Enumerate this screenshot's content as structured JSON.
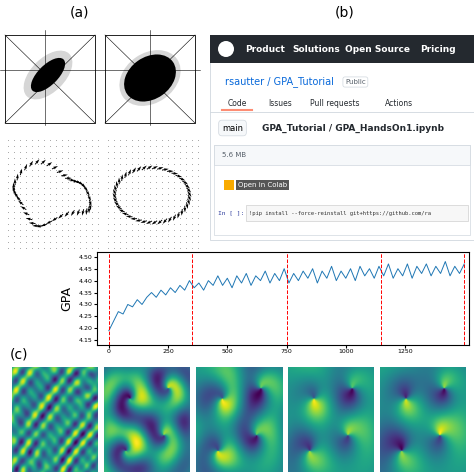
{
  "panel_labels": [
    "(a)",
    "(b)",
    "(c)"
  ],
  "screenshot": {
    "nav": [
      "Product",
      "Solutions",
      "Open Source",
      "Pricing"
    ],
    "repo_title": "rsautter / GPA_Tutorial",
    "visibility": "Public",
    "tabs": [
      "Code",
      "Issues",
      "Pull requests",
      "Actions"
    ],
    "branch": "main",
    "path": "GPA_Tutorial / GPA_HandsOn1.ipynb",
    "size": "5.6 MB",
    "badge": "Open in Colab",
    "cell_prompt": "In [ ]:",
    "cell_code": "!pip install --force-reinstall git+https://github.com/ra"
  },
  "chart_data": {
    "type": "line",
    "ylabel": "GPA",
    "color": "#1f77b4",
    "x": [
      0,
      20,
      40,
      60,
      80,
      100,
      120,
      140,
      160,
      180,
      200,
      220,
      240,
      260,
      280,
      300,
      320,
      340,
      360,
      380,
      400,
      420,
      440,
      460,
      480,
      500,
      520,
      540,
      560,
      580,
      600,
      620,
      640,
      660,
      680,
      700,
      720,
      740,
      760,
      780,
      800,
      820,
      840,
      860,
      880,
      900,
      920,
      940,
      960,
      980,
      1000,
      1020,
      1040,
      1060,
      1080,
      1100,
      1120,
      1140,
      1160,
      1180,
      1200,
      1220,
      1240,
      1260,
      1280,
      1300,
      1320,
      1340,
      1360,
      1380,
      1400,
      1420,
      1440,
      1460,
      1480,
      1500
    ],
    "values": [
      4.19,
      4.23,
      4.27,
      4.26,
      4.3,
      4.29,
      4.32,
      4.3,
      4.33,
      4.35,
      4.33,
      4.36,
      4.34,
      4.37,
      4.35,
      4.38,
      4.36,
      4.4,
      4.37,
      4.39,
      4.36,
      4.4,
      4.38,
      4.42,
      4.38,
      4.41,
      4.37,
      4.42,
      4.39,
      4.43,
      4.38,
      4.42,
      4.4,
      4.44,
      4.39,
      4.43,
      4.4,
      4.45,
      4.39,
      4.43,
      4.4,
      4.44,
      4.41,
      4.45,
      4.39,
      4.44,
      4.41,
      4.46,
      4.4,
      4.44,
      4.41,
      4.45,
      4.4,
      4.46,
      4.42,
      4.45,
      4.41,
      4.46,
      4.42,
      4.47,
      4.41,
      4.45,
      4.42,
      4.47,
      4.41,
      4.46,
      4.43,
      4.47,
      4.42,
      4.46,
      4.43,
      4.48,
      4.42,
      4.46,
      4.43,
      4.47
    ],
    "xlim": [
      -50,
      1520
    ],
    "xticks": [
      0,
      250,
      500,
      750,
      1000,
      1250
    ],
    "ylim": [
      4.13,
      4.52
    ],
    "yticks": [
      4.15,
      {
        "value": 4.2,
        "label": "4.20"
      },
      4.25,
      {
        "value": 4.3,
        "label": "4.30"
      },
      4.35,
      {
        "value": 4.4,
        "label": "4.40"
      },
      4.45,
      {
        "value": 4.5,
        "label": "4.50"
      }
    ],
    "vlines": [
      0,
      350,
      750,
      1150,
      1500
    ],
    "grid": false
  }
}
